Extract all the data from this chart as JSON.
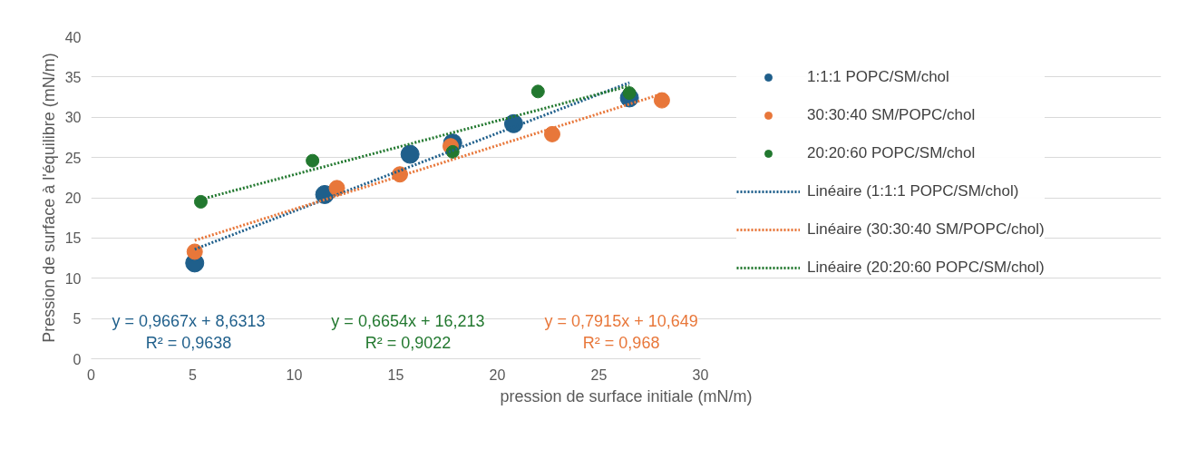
{
  "chart_data": {
    "type": "scatter",
    "xlabel": "pression de surface initiale (mN/m)",
    "ylabel": "Pression de surface à l'équilibre (mN/m)",
    "xlim": [
      0,
      30
    ],
    "xticks": [
      0,
      5,
      10,
      15,
      20,
      25,
      30
    ],
    "ylim": [
      0,
      40
    ],
    "yticks": [
      0,
      5,
      10,
      15,
      20,
      25,
      30,
      35,
      40
    ],
    "grid": "y",
    "legend": "right",
    "marker": "circle",
    "series": [
      {
        "name": "1:1:1 POPC/SM/chol",
        "color": "#1f5f8b",
        "x": [
          5.1,
          11.5,
          15.7,
          17.8,
          20.8,
          26.5
        ],
        "values": [
          11.9,
          20.4,
          25.4,
          26.8,
          29.2,
          32.4
        ]
      },
      {
        "name": "30:30:40 SM/POPC/chol",
        "color": "#e8773a",
        "x": [
          5.1,
          12.1,
          15.2,
          17.7,
          22.7,
          28.1
        ],
        "values": [
          13.3,
          21.2,
          22.9,
          26.4,
          27.9,
          32.1
        ]
      },
      {
        "name": "20:20:60 POPC/SM/chol",
        "color": "#22782f",
        "x": [
          5.4,
          10.9,
          17.8,
          22.0,
          26.5
        ],
        "values": [
          19.5,
          24.6,
          25.7,
          33.2,
          33.0
        ]
      },
      {
        "name": "Linéaire (1:1:1 POPC/SM/chol)",
        "color": "#1f5f8b",
        "type": "line",
        "marker": "none",
        "line_style": "dotted",
        "x": [
          5.1,
          26.5
        ],
        "values": [
          13.6,
          34.3
        ]
      },
      {
        "name": "Linéaire (30:30:40 SM/POPC/chol)",
        "color": "#e8773a",
        "type": "line",
        "marker": "none",
        "line_style": "dotted",
        "x": [
          5.1,
          28.1
        ],
        "values": [
          14.7,
          32.9
        ]
      },
      {
        "name": "Linéaire (20:20:60 POPC/SM/chol)",
        "color": "#22782f",
        "type": "line",
        "marker": "none",
        "line_style": "dotted",
        "x": [
          5.4,
          26.5
        ],
        "values": [
          19.8,
          33.9
        ]
      }
    ],
    "annotations": [
      "y = 0,9667x + 8,6313\nR² = 0,9638",
      "y = 0,7915x + 10,649\nR² = 0,968",
      "y = 0,6654x + 16,213\nR² = 0,9022"
    ]
  }
}
